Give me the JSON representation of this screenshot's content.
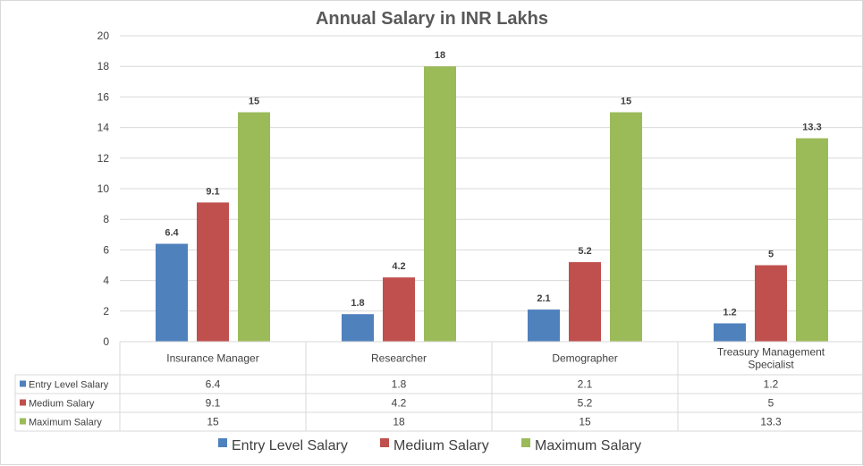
{
  "chart_data": {
    "type": "bar",
    "title": "Annual Salary in INR Lakhs",
    "categories": [
      "Insurance Manager",
      "Researcher",
      "Demographer",
      "Treasury Management Specialist"
    ],
    "category_lines": [
      [
        "Insurance Manager"
      ],
      [
        "Researcher"
      ],
      [
        "Demographer"
      ],
      [
        "Treasury Management",
        "Specialist"
      ]
    ],
    "series": [
      {
        "name": "Entry Level Salary",
        "values": [
          6.4,
          1.8,
          2.1,
          1.2
        ],
        "labels": [
          "6.4",
          "1.8",
          "2.1",
          "1.2"
        ],
        "color": "#4f81bd"
      },
      {
        "name": "Medium Salary",
        "values": [
          9.1,
          4.2,
          5.2,
          5
        ],
        "labels": [
          "9.1",
          "4.2",
          "5.2",
          "5"
        ],
        "color": "#c0504d"
      },
      {
        "name": "Maximum Salary",
        "values": [
          15,
          18,
          15,
          13.3
        ],
        "labels": [
          "15",
          "18",
          "15",
          "13.3"
        ],
        "color": "#9bbb59"
      }
    ],
    "ylim": [
      0,
      20
    ],
    "yticks": [
      "0",
      "2",
      "4",
      "6",
      "8",
      "10",
      "12",
      "14",
      "16",
      "18",
      "20"
    ],
    "grid": true,
    "legend": "bottom",
    "data_table": true
  }
}
